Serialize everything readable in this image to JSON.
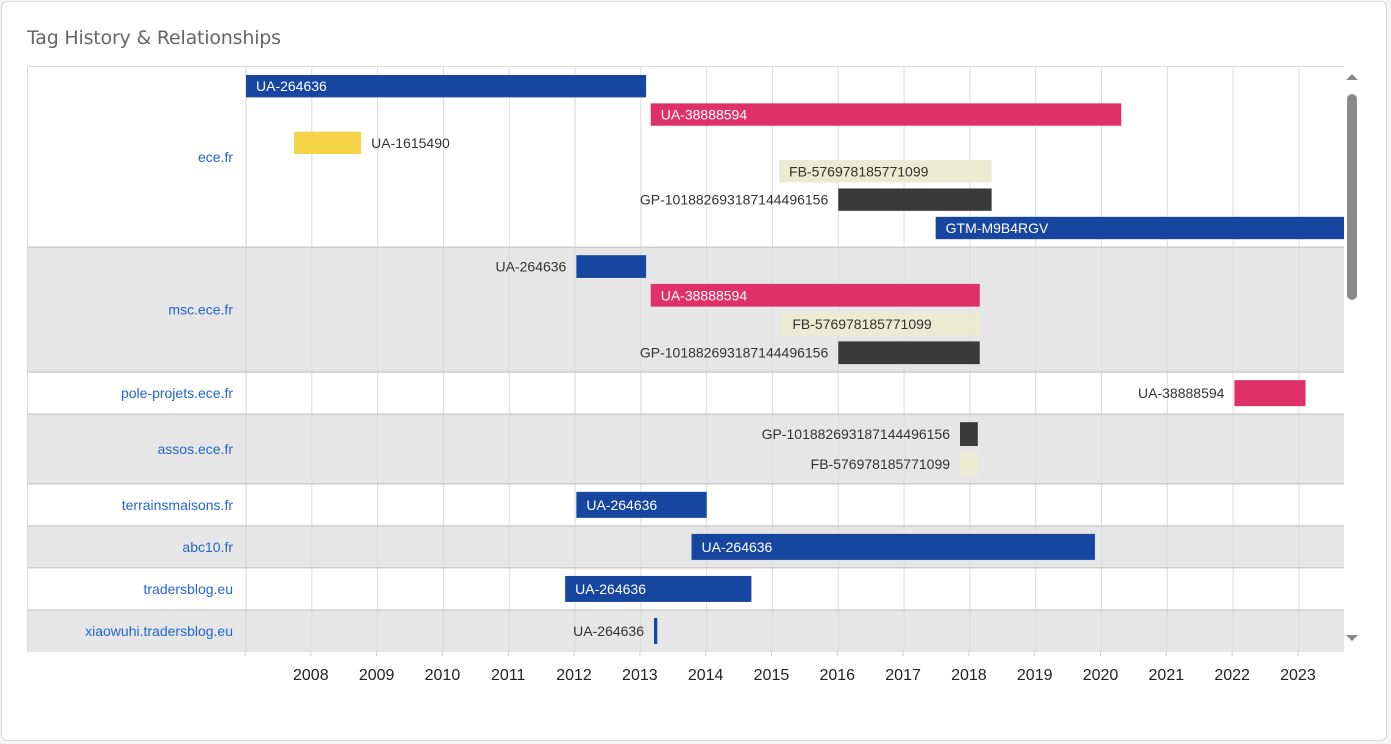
{
  "title": "Tag History & Relationships",
  "colors": {
    "ua_blue": "#1646a0",
    "ua_pink": "#e0306a",
    "ua_yellow": "#f5d547",
    "fb_beige": "#ebebd2",
    "gp_dark": "#3a3a3a",
    "domain_link": "#2266cc",
    "row_alt": "#e6e6e6"
  },
  "chart_data": {
    "type": "timeline",
    "x_ticks": [
      "2008",
      "2009",
      "2010",
      "2011",
      "2012",
      "2013",
      "2014",
      "2015",
      "2016",
      "2017",
      "2018",
      "2019",
      "2020",
      "2021",
      "2022",
      "2023"
    ],
    "xlim": [
      2007.0,
      2023.7
    ],
    "rows": [
      {
        "domain": "ece.fr",
        "bars": [
          {
            "label": "UA-264636",
            "start": 2007.0,
            "end": 2013.08,
            "color": "#1646a0",
            "label_pos": "inside"
          },
          {
            "label": "UA-38888594",
            "start": 2013.15,
            "end": 2020.3,
            "color": "#e0306a",
            "label_pos": "inside"
          },
          {
            "label": "UA-1615490",
            "start": 2007.73,
            "end": 2008.75,
            "color": "#f5d547",
            "label_pos": "right"
          },
          {
            "label": "FB-576978185771099",
            "start": 2015.1,
            "end": 2018.33,
            "color": "#ebebd2",
            "label_pos": "inside-dark"
          },
          {
            "label": "GP-101882693187144496156",
            "start": 2016.0,
            "end": 2018.33,
            "color": "#3a3a3a",
            "label_pos": "left"
          },
          {
            "label": "GTM-M9B4RGV",
            "start": 2017.48,
            "end": 2023.7,
            "color": "#1646a0",
            "label_pos": "inside"
          }
        ]
      },
      {
        "domain": "msc.ece.fr",
        "bars": [
          {
            "label": "UA-264636",
            "start": 2012.02,
            "end": 2013.08,
            "color": "#1646a0",
            "label_pos": "left"
          },
          {
            "label": "UA-38888594",
            "start": 2013.15,
            "end": 2018.15,
            "color": "#e0306a",
            "label_pos": "inside"
          },
          {
            "label": "FB-576978185771099",
            "start": 2015.15,
            "end": 2018.15,
            "color": "#ebebd2",
            "label_pos": "inside-dark"
          },
          {
            "label": "GP-101882693187144496156",
            "start": 2016.0,
            "end": 2018.15,
            "color": "#3a3a3a",
            "label_pos": "left"
          }
        ]
      },
      {
        "domain": "pole-projets.ece.fr",
        "bars": [
          {
            "label": "UA-38888594",
            "start": 2022.02,
            "end": 2023.1,
            "color": "#e0306a",
            "label_pos": "left"
          }
        ]
      },
      {
        "domain": "assos.ece.fr",
        "bars": [
          {
            "label": "GP-101882693187144496156",
            "start": 2017.85,
            "end": 2018.12,
            "color": "#3a3a3a",
            "label_pos": "left"
          },
          {
            "label": "FB-576978185771099",
            "start": 2017.85,
            "end": 2018.12,
            "color": "#ebebd2",
            "label_pos": "left"
          }
        ]
      },
      {
        "domain": "terrainsmaisons.fr",
        "bars": [
          {
            "label": "UA-264636",
            "start": 2012.02,
            "end": 2014.0,
            "color": "#1646a0",
            "label_pos": "inside"
          }
        ]
      },
      {
        "domain": "abc10.fr",
        "bars": [
          {
            "label": "UA-264636",
            "start": 2013.77,
            "end": 2019.9,
            "color": "#1646a0",
            "label_pos": "inside"
          }
        ]
      },
      {
        "domain": "tradersblog.eu",
        "bars": [
          {
            "label": "UA-264636",
            "start": 2011.85,
            "end": 2014.68,
            "color": "#1646a0",
            "label_pos": "inside"
          }
        ]
      },
      {
        "domain": "xiaowuhi.tradersblog.eu",
        "bars": [
          {
            "label": "UA-264636",
            "start": 2013.2,
            "end": 2013.25,
            "color": "#1646a0",
            "label_pos": "left"
          }
        ]
      }
    ]
  }
}
